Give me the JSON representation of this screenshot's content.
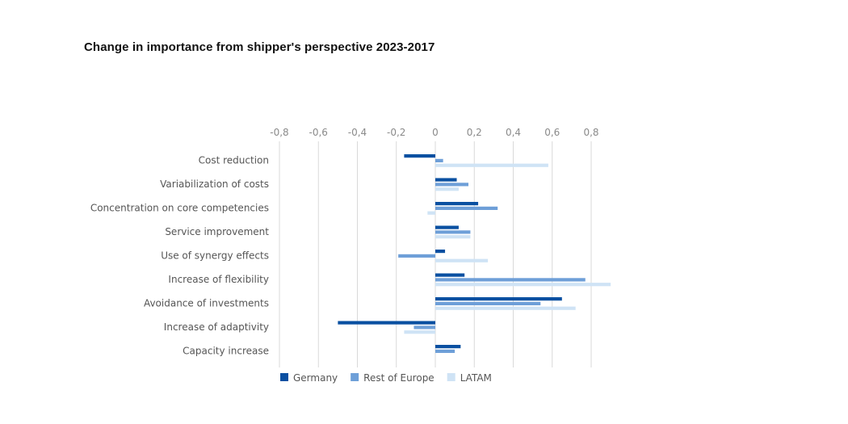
{
  "chart_data": {
    "type": "bar",
    "orientation": "horizontal",
    "title": "Change in importance from shipper's perspective 2023-2017",
    "categories": [
      "Cost reduction",
      "Variabilization of costs",
      "Concentration on core competencies",
      "Service improvement",
      "Use of synergy effects",
      "Increase of flexibility",
      "Avoidance of investments",
      "Increase of adaptivity",
      "Capacity increase"
    ],
    "series": [
      {
        "name": "Germany",
        "color": "#0a50a1",
        "values": [
          -0.16,
          0.11,
          0.22,
          0.12,
          0.05,
          0.15,
          0.65,
          -0.5,
          0.13
        ]
      },
      {
        "name": "Rest of Europe",
        "color": "#6e9fd8",
        "values": [
          0.04,
          0.17,
          0.32,
          0.18,
          -0.19,
          0.77,
          0.54,
          -0.11,
          0.1
        ]
      },
      {
        "name": "LATAM",
        "color": "#cfe3f5",
        "values": [
          0.58,
          0.12,
          -0.04,
          0.18,
          0.27,
          0.9,
          0.72,
          -0.16,
          0.0
        ]
      }
    ],
    "xlim": [
      -0.8,
      0.8
    ],
    "xticks": [
      -0.8,
      -0.6,
      -0.4,
      -0.2,
      0,
      0.2,
      0.4,
      0.6,
      0.8
    ],
    "xtick_labels": [
      "-0,8",
      "-0,6",
      "-0,4",
      "-0,2",
      "0",
      "0,2",
      "0,4",
      "0,6",
      "0,8"
    ],
    "grid": true,
    "legend": "bottom"
  }
}
